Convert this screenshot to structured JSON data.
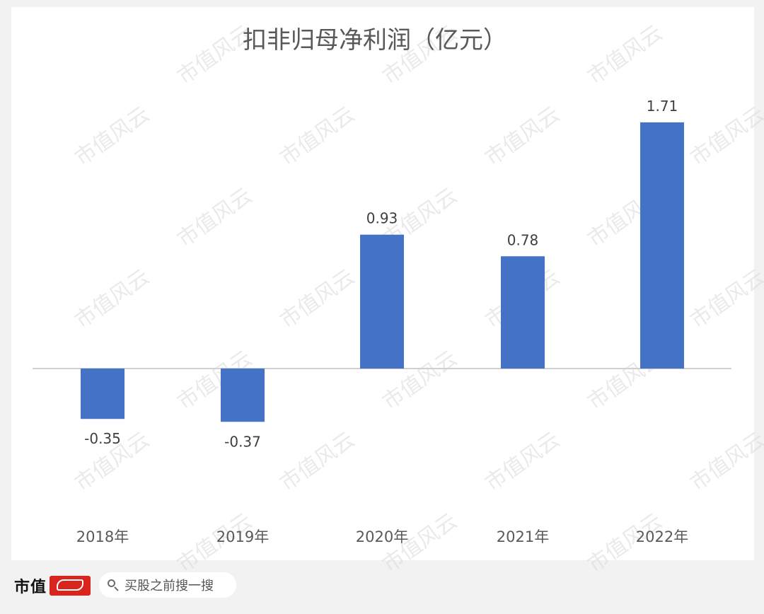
{
  "chart_data": {
    "type": "bar",
    "title": "扣非归母净利润（亿元）",
    "categories": [
      "2018年",
      "2019年",
      "2020年",
      "2021年",
      "2022年"
    ],
    "values": [
      -0.35,
      -0.37,
      0.93,
      0.78,
      1.71
    ],
    "value_labels": [
      "-0.35",
      "-0.37",
      "0.93",
      "0.78",
      "1.71"
    ],
    "xlabel": "",
    "ylabel": "",
    "ylim": [
      -0.4,
      1.8
    ],
    "grid": false,
    "legend": "none",
    "bar_color": "#4472c4"
  },
  "watermark": {
    "text": "市值风云"
  },
  "footer": {
    "brand_name": "市值",
    "brand_badge_color": "#d9231d",
    "search_icon": "search-icon",
    "search_text": "买股之前搜一搜"
  }
}
